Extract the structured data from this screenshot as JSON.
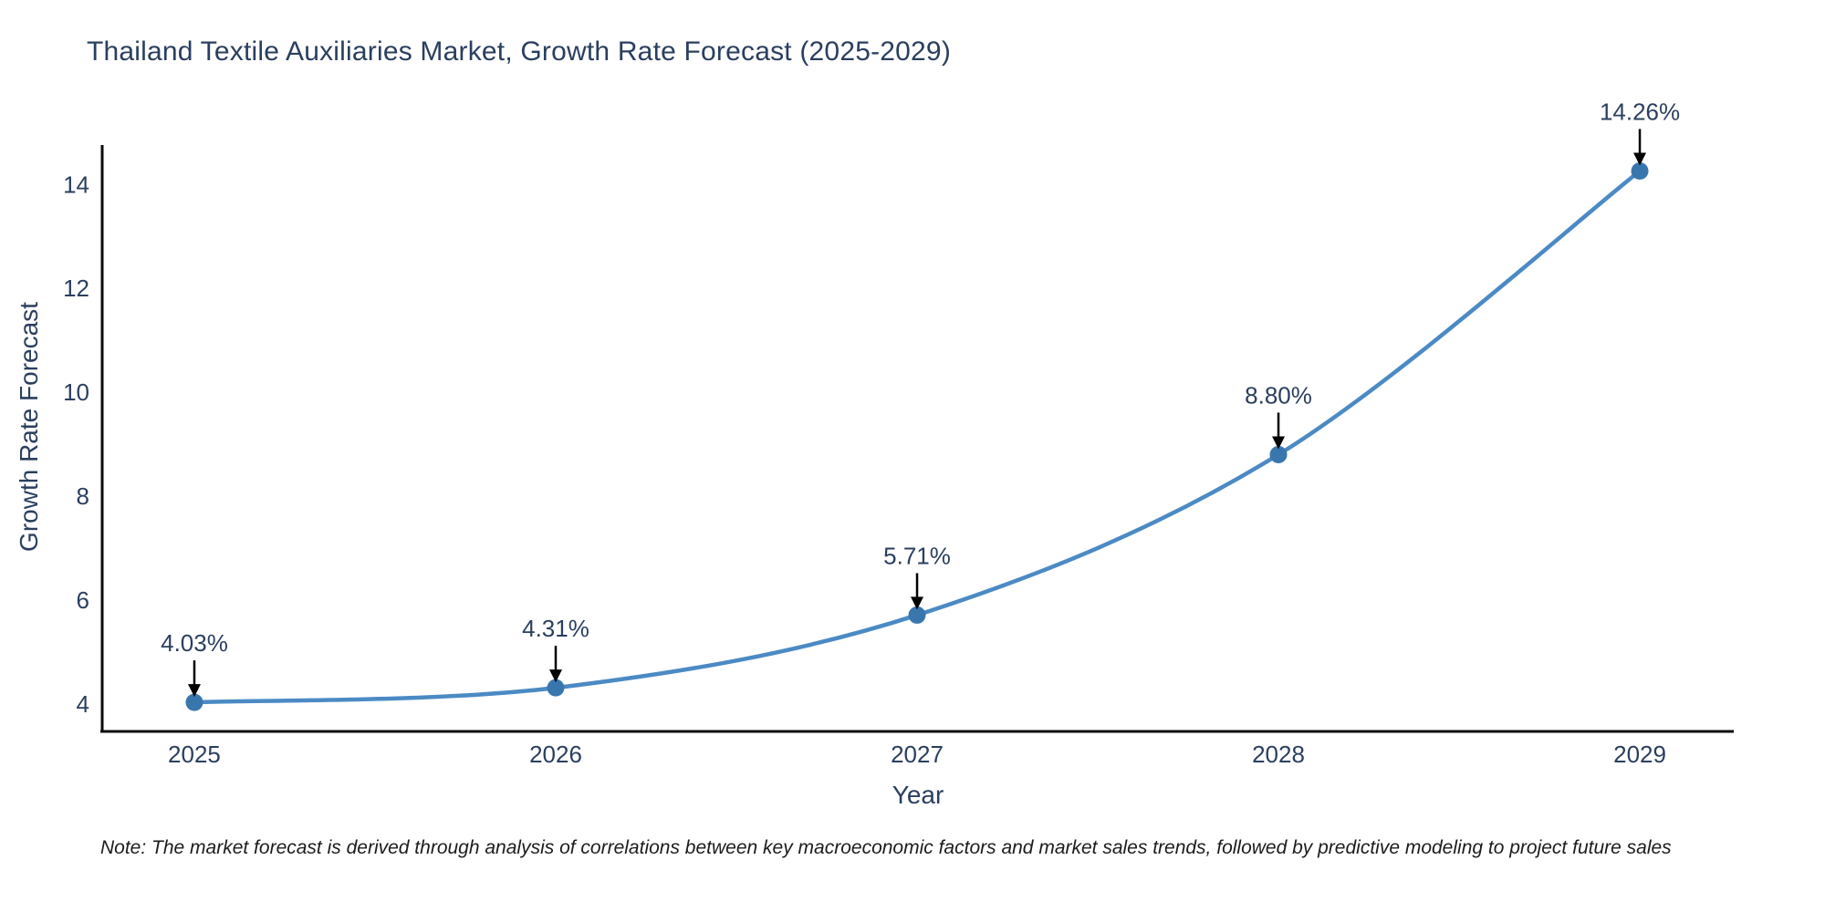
{
  "title": "Thailand Textile Auxiliaries Market, Growth Rate Forecast (2025-2029)",
  "note": "Note: The market forecast is derived through analysis of correlations between key macroeconomic factors and market sales trends, followed by predictive modeling to project future sales",
  "chart_data": {
    "type": "line",
    "title": "Thailand Textile Auxiliaries Market, Growth Rate Forecast (2025-2029)",
    "xlabel": "Year",
    "ylabel": "Growth Rate Forecast",
    "x": [
      2025,
      2026,
      2027,
      2028,
      2029
    ],
    "values": [
      4.03,
      4.31,
      5.71,
      8.8,
      14.26
    ],
    "point_labels": [
      "4.03%",
      "4.31%",
      "5.71%",
      "8.80%",
      "14.26%"
    ],
    "xticks": [
      2025,
      2026,
      2027,
      2028,
      2029
    ],
    "yticks": [
      4,
      6,
      8,
      10,
      12,
      14
    ],
    "xlim": [
      2024.745,
      2029.26
    ],
    "ylim": [
      3.47,
      14.76
    ],
    "line_shape": "spline",
    "grid": false,
    "legend": "none",
    "colors": {
      "line": "#4b8ac4",
      "marker": "#3a76ae",
      "arrow": "#000000",
      "text": "#2a3f5f",
      "axis_line": "#0a0a0a"
    }
  }
}
